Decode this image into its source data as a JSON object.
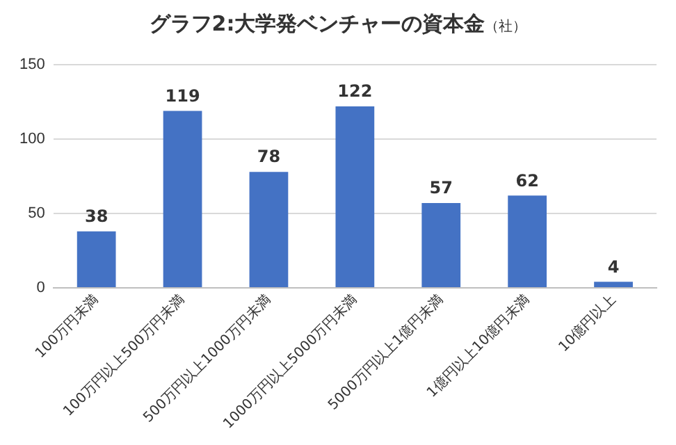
{
  "chart_data": {
    "type": "bar",
    "title": "グラフ2:大学発ベンチャーの資本金",
    "subtitle": "（社）",
    "categories": [
      "100万円未満",
      "100万円以上500万円未満",
      "500万円以上1000万円未満",
      "1000万円以上5000万円未満",
      "5000万円以上1億円未満",
      "1億円以上10億円未満",
      "10億円以上"
    ],
    "values": [
      38,
      119,
      78,
      122,
      57,
      62,
      4
    ],
    "color": "#4472c4",
    "ylim": [
      0,
      150
    ],
    "yticks": [
      0,
      50,
      100,
      150
    ],
    "grid": "y",
    "data_labels": true
  }
}
